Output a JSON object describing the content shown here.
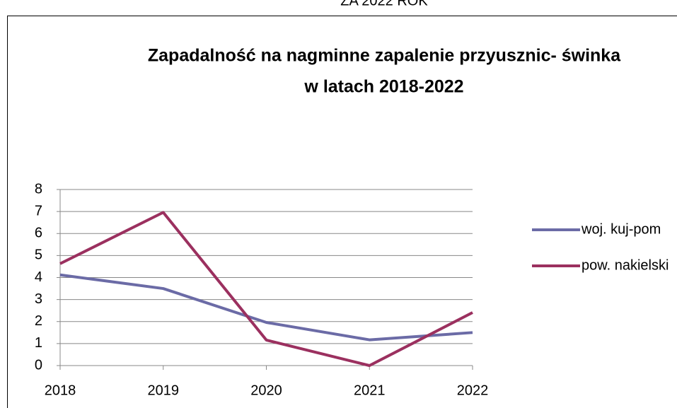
{
  "page_header": "ZA 2022 ROK",
  "chart_data": {
    "type": "line",
    "title": [
      "Zapadalność na nagminne zapalenie przyusznic- świnka",
      "w latach 2018-2022"
    ],
    "categories": [
      "2018",
      "2019",
      "2020",
      "2021",
      "2022"
    ],
    "series": [
      {
        "name": "woj. kuj-pom",
        "color": "#6b6ba6",
        "values": [
          4.12,
          3.5,
          1.96,
          1.17,
          1.5
        ]
      },
      {
        "name": "pow. nakielski",
        "color": "#9b305f",
        "values": [
          4.63,
          6.96,
          1.16,
          0,
          2.41
        ]
      }
    ],
    "ylim": [
      0,
      8
    ],
    "yticks": [
      0,
      1,
      2,
      3,
      4,
      5,
      6,
      7,
      8
    ],
    "grid": true,
    "legend": "right"
  }
}
